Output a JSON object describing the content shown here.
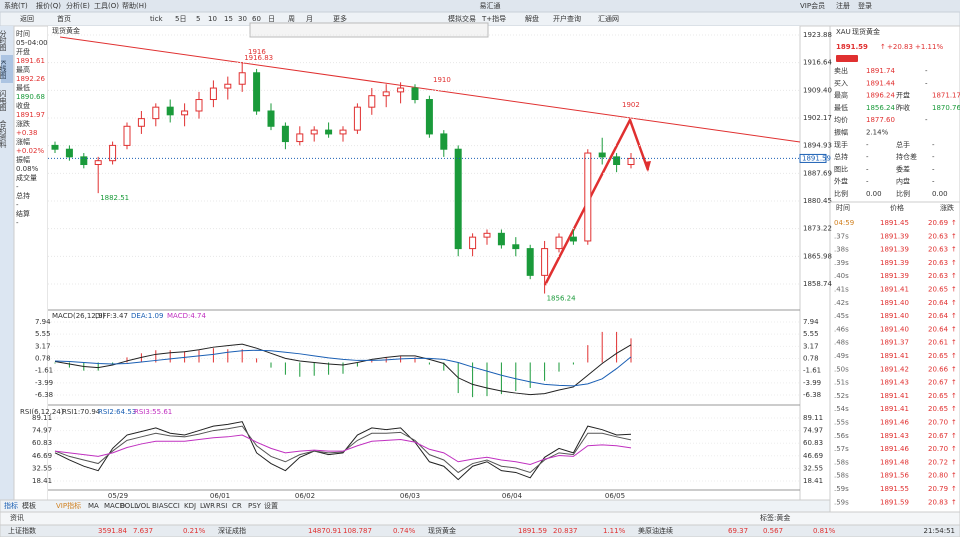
{
  "menu": [
    "系统(T)",
    "报价(Q)",
    "分析(E)",
    "工具(O)",
    "帮助(H)"
  ],
  "app_title": "易汇通",
  "account": [
    "VIP会员",
    "注册",
    "登录"
  ],
  "toolbar": [
    "返回",
    "首页",
    "tick",
    "5日",
    "5",
    "10",
    "15",
    "30",
    "60",
    "日",
    "周",
    "月",
    "更多",
    "模拟交易",
    "T+指导",
    "解盘",
    "开户查询",
    "汇通网"
  ],
  "side_tabs": [
    "分时图",
    "K线图",
    "闪电图",
    "合约资料"
  ],
  "info": {
    "labels": [
      "时间",
      "开盘",
      "最高",
      "最低",
      "收盘",
      "涨跌",
      "涨幅",
      "振幅",
      "成交量",
      "总持",
      "结算"
    ],
    "values": [
      "05-04:00",
      "1891.61",
      "1892.26",
      "1890.68",
      "1891.97",
      "+0.38",
      "+0.02%",
      "0.08%",
      "-",
      "-",
      "-"
    ]
  },
  "chart": {
    "type": "candlestick",
    "title": "现货黄金",
    "ylim": [
      1858.74,
      1923.88
    ],
    "yticks": [
      1923.88,
      1916.64,
      {
        "value": 1909.4,
        "label": "1909.40"
      },
      1902.17,
      1894.93,
      1887.69,
      1880.45,
      1873.22,
      1865.98,
      1858.74
    ],
    "candles": [
      [
        1895,
        1896,
        1893,
        1894
      ],
      [
        1894,
        1895,
        1891,
        1892
      ],
      [
        1892,
        1893,
        1889,
        1890
      ],
      [
        1890,
        1892,
        1882.51,
        1891
      ],
      [
        1891,
        1896,
        1890,
        1895
      ],
      [
        1895,
        1901,
        1894,
        1900
      ],
      [
        1900,
        1904,
        1898,
        1902
      ],
      [
        1902,
        1906,
        1900,
        1905
      ],
      [
        1905,
        1907,
        1901,
        1903
      ],
      [
        1903,
        1906,
        1900,
        1904
      ],
      [
        1904,
        1909,
        1902,
        1907
      ],
      [
        1907,
        1912,
        1905,
        1910
      ],
      [
        1910,
        1913,
        1907,
        1911
      ],
      [
        1911,
        1916.83,
        1909,
        1914
      ],
      [
        1914,
        1915,
        1903,
        1904
      ],
      [
        1904,
        1906,
        1899,
        1900
      ],
      [
        1900,
        1901,
        1894,
        1896
      ],
      [
        1896,
        1900,
        1895,
        1898
      ],
      [
        1898,
        1900,
        1896,
        1899
      ],
      [
        1899,
        1901,
        1897,
        1898
      ],
      [
        1898,
        1900,
        1896,
        1899
      ],
      [
        1899,
        1906,
        1898,
        1905
      ],
      [
        1905,
        1910,
        1903,
        1908
      ],
      [
        1908,
        1911,
        1905,
        1909
      ],
      [
        1909,
        1911.5,
        1906,
        1910
      ],
      [
        1910,
        1911,
        1906,
        1907
      ],
      [
        1907,
        1908,
        1897,
        1898
      ],
      [
        1898,
        1899,
        1892,
        1894
      ],
      [
        1894,
        1895,
        1866,
        1868
      ],
      [
        1868,
        1872,
        1866,
        1871
      ],
      [
        1871,
        1873,
        1869,
        1872
      ],
      [
        1872,
        1873,
        1868,
        1869
      ],
      [
        1869,
        1871,
        1866,
        1868
      ],
      [
        1868,
        1869,
        1860,
        1861
      ],
      [
        1861,
        1870,
        1856.24,
        1868
      ],
      [
        1868,
        1872,
        1867,
        1871
      ],
      [
        1871,
        1873,
        1869,
        1870
      ],
      [
        1870,
        1894,
        1869,
        1893
      ],
      [
        1893,
        1897,
        1890,
        1892
      ],
      [
        1892,
        1893,
        1888,
        1890
      ],
      [
        1890,
        1893,
        1889,
        1891.59
      ]
    ],
    "annotations": [
      "1916",
      "1910",
      "1902"
    ],
    "dates": [
      "05/29",
      "06/01",
      "06/02",
      "06/03",
      "06/04",
      "06/05"
    ],
    "macd": {
      "label": "MACD(26,12,9)",
      "legend": [
        "DIFF:3.47",
        "DEA:1.09",
        "MACD:4.74"
      ],
      "ylim": [
        -6.38,
        7.94
      ],
      "yticks": [
        7.94,
        5.55,
        3.17,
        0.78,
        -1.61,
        -3.99,
        -6.38
      ],
      "diff": [
        0.2,
        -0.3,
        -0.8,
        -1.0,
        -0.5,
        0.3,
        1.0,
        1.6,
        1.9,
        2.1,
        2.5,
        3.0,
        3.3,
        3.6,
        2.8,
        1.8,
        0.8,
        0.3,
        0,
        -0.3,
        -0.5,
        0,
        0.6,
        1.0,
        1.3,
        1.3,
        0.6,
        -0.2,
        -3.0,
        -4.3,
        -5.0,
        -5.6,
        -6.0,
        -6.3,
        -6.1,
        -5.4,
        -4.8,
        -2.5,
        -0.2,
        1.8,
        3.47
      ],
      "dea": [
        0.3,
        0.2,
        0,
        -0.2,
        -0.3,
        -0.2,
        0.1,
        0.4,
        0.7,
        1.0,
        1.3,
        1.6,
        2.0,
        2.3,
        2.4,
        2.3,
        2.0,
        1.7,
        1.3,
        0.9,
        0.6,
        0.4,
        0.4,
        0.5,
        0.7,
        0.8,
        0.8,
        0.6,
        0,
        -0.9,
        -1.7,
        -2.5,
        -3.2,
        -3.8,
        -4.3,
        -4.5,
        -4.6,
        -4.2,
        -3.2,
        -1.2,
        1.09
      ],
      "hist": [
        -0.2,
        -1.0,
        -1.6,
        -1.6,
        -0.4,
        1.0,
        1.8,
        2.4,
        2.4,
        2.2,
        2.4,
        2.8,
        2.6,
        2.6,
        0.8,
        -1.0,
        -2.4,
        -2.8,
        -2.6,
        -2.4,
        -2.2,
        -0.8,
        0.4,
        1.0,
        1.2,
        1.0,
        -0.4,
        -1.6,
        -6.0,
        -6.8,
        -6.6,
        -6.2,
        -5.6,
        -5.0,
        -3.6,
        -1.8,
        -0.4,
        3.4,
        6.0,
        6.0,
        4.74
      ]
    },
    "rsi": {
      "label": "RSI(6,12,24)",
      "legend": [
        "RSI1:70.94",
        "RSI2:64.53",
        "RSI3:55.61"
      ],
      "ylim": [
        18.41,
        89.11
      ],
      "yticks": [
        89.11,
        74.97,
        60.83,
        46.69,
        32.55,
        18.41
      ],
      "rsi1": [
        50,
        42,
        35,
        30,
        55,
        70,
        74,
        78,
        72,
        70,
        75,
        80,
        82,
        85,
        50,
        38,
        30,
        45,
        52,
        48,
        50,
        70,
        78,
        76,
        78,
        62,
        40,
        35,
        20,
        35,
        40,
        30,
        28,
        22,
        45,
        55,
        50,
        80,
        76,
        70,
        70.94
      ],
      "rsi2": [
        52,
        46,
        42,
        38,
        52,
        64,
        68,
        72,
        69,
        68,
        71,
        75,
        77,
        80,
        58,
        46,
        40,
        48,
        52,
        50,
        51,
        64,
        72,
        72,
        73,
        64,
        48,
        42,
        28,
        38,
        42,
        35,
        33,
        28,
        42,
        50,
        48,
        72,
        72,
        68,
        64.53
      ],
      "rsi3": [
        52,
        50,
        48,
        46,
        50,
        56,
        60,
        63,
        63,
        63,
        65,
        67,
        68,
        70,
        62,
        55,
        50,
        52,
        53,
        52,
        52,
        58,
        63,
        64,
        65,
        62,
        54,
        50,
        40,
        43,
        45,
        42,
        40,
        37,
        43,
        47,
        46,
        58,
        59,
        58,
        55.61
      ]
    }
  },
  "quote": {
    "code": "XAU",
    "name": "现货黄金",
    "price": "1891.59",
    "change": "+20.83",
    "change_pct": "+1.11%",
    "rows": [
      [
        "卖出",
        "1891.74",
        "-"
      ],
      [
        "买入",
        "1891.44",
        "-"
      ],
      [
        "最高",
        "1896.24",
        "开盘",
        "1871.17"
      ],
      [
        "最低",
        "1856.24",
        "昨收",
        "1870.76"
      ],
      [
        "均价",
        "1877.60",
        "-"
      ],
      [
        "振幅",
        "2.14%"
      ],
      [
        "现手",
        "-",
        "总手",
        "-"
      ],
      [
        "总持",
        "-",
        "持仓差",
        "-"
      ],
      [
        "图比",
        "-",
        "委差",
        "-"
      ],
      [
        "外盘",
        "-",
        "内盘",
        "-"
      ],
      [
        "比例",
        "0.00",
        "比例",
        "0.00"
      ]
    ],
    "tick_header": [
      "时间",
      "价格",
      "涨跌"
    ],
    "ticks": [
      [
        "04:59",
        "1891.45",
        "20.69"
      ],
      [
        ".37s",
        "1891.39",
        "20.63"
      ],
      [
        ".38s",
        "1891.39",
        "20.63"
      ],
      [
        ".39s",
        "1891.39",
        "20.63"
      ],
      [
        ".40s",
        "1891.39",
        "20.63"
      ],
      [
        ".41s",
        "1891.41",
        "20.65"
      ],
      [
        ".42s",
        "1891.40",
        "20.64"
      ],
      [
        ".45s",
        "1891.40",
        "20.64"
      ],
      [
        ".46s",
        "1891.40",
        "20.64"
      ],
      [
        ".48s",
        "1891.37",
        "20.61"
      ],
      [
        ".49s",
        "1891.41",
        "20.65"
      ],
      [
        ".50s",
        "1891.42",
        "20.66"
      ],
      [
        ".51s",
        "1891.43",
        "20.67"
      ],
      [
        ".52s",
        "1891.41",
        "20.65"
      ],
      [
        ".54s",
        "1891.41",
        "20.65"
      ],
      [
        ".55s",
        "1891.46",
        "20.70"
      ],
      [
        ".56s",
        "1891.43",
        "20.67"
      ],
      [
        ".57s",
        "1891.46",
        "20.70"
      ],
      [
        ".58s",
        "1891.48",
        "20.72"
      ],
      [
        ".58s",
        "1891.56",
        "20.80"
      ],
      [
        ".59s",
        "1891.55",
        "20.79"
      ],
      [
        ".59s",
        "1891.59",
        "20.83"
      ]
    ]
  },
  "bottom_tabs": [
    "指标",
    "模板"
  ],
  "indicators": [
    "VIP指标",
    "MA",
    "MACD",
    "BOLL",
    "VOL",
    "BIAS",
    "CCI",
    "KDJ",
    "LWR",
    "RSI",
    "CR",
    "PSY",
    "设置"
  ],
  "news_label": "资讯",
  "tag_label": "标签:黄金",
  "status": [
    [
      "上证指数",
      "3591.84",
      "7.637",
      "0.21%"
    ],
    [
      "深证成指",
      "14870.91",
      "108.787",
      "0.74%"
    ],
    [
      "现货黄金",
      "1891.59",
      "20.837",
      "1.11%"
    ],
    [
      "美原油连续",
      "69.37",
      "0.567",
      "0.81%"
    ]
  ],
  "clock": "21:54:51"
}
